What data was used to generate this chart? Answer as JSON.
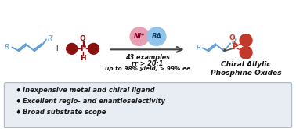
{
  "bg_color": "#ffffff",
  "bottom_bg": "#e8edf4",
  "bottom_border": "#aab8c8",
  "diene_color": "#5b9bd5",
  "phosphine_color": "#8b1010",
  "product_color": "#5b9bd5",
  "product_p_color": "#c0392b",
  "ni_color": "#e8a0b4",
  "ba_color": "#90c4e8",
  "ni_text": "Ni*",
  "ba_text": "BA",
  "arrow_color": "#444444",
  "text_color": "#000000",
  "conditions_line1": "43 examples",
  "conditions_line2": "rr > 20:1",
  "conditions_line3": "up to 98% yield, > 99% ee",
  "product_label_line1": "Chiral Allylic",
  "product_label_line2": "Phosphine Oxides",
  "bullet1": "Inexpensive metal and chiral ligand",
  "bullet2": "Excellent regio- and enantioselectivity",
  "bullet3": "Broad substrate scope",
  "bullet_color": "#1a1a1a",
  "bullet_symbol": "♦",
  "plus_color": "#333333"
}
